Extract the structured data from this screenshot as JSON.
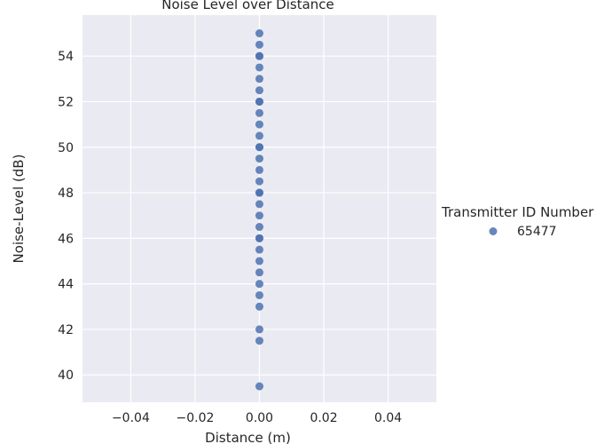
{
  "chart_data": {
    "type": "scatter",
    "title": "Noise Level over Distance",
    "xlabel": "Distance (m)",
    "ylabel": "Noise-Level (dB)",
    "xlim": [
      -0.055,
      0.055
    ],
    "ylim": [
      38.8,
      55.8
    ],
    "xticks": [
      -0.04,
      -0.02,
      0.0,
      0.02,
      0.04
    ],
    "xtick_labels": [
      "−0.04",
      "−0.02",
      "0.00",
      "0.02",
      "0.04"
    ],
    "yticks": [
      40,
      42,
      44,
      46,
      48,
      50,
      52,
      54
    ],
    "ytick_labels": [
      "40",
      "42",
      "44",
      "46",
      "48",
      "50",
      "52",
      "54"
    ],
    "grid": true,
    "legend": {
      "title": "Transmitter ID Number",
      "placement": "right"
    },
    "series": [
      {
        "name": "65477",
        "color": "#4c72b0",
        "x": [
          0,
          0,
          0,
          0,
          0,
          0,
          0,
          0,
          0,
          0,
          0,
          0,
          0,
          0,
          0,
          0,
          0,
          0,
          0,
          0,
          0,
          0,
          0,
          0,
          0,
          0,
          0,
          0,
          0,
          0,
          0,
          0,
          0
        ],
        "y": [
          39.5,
          41.5,
          42.0,
          43.0,
          43.5,
          44.0,
          44.5,
          45.0,
          45.5,
          46.0,
          46.5,
          47.0,
          47.5,
          48.0,
          48.5,
          49.0,
          49.5,
          50.0,
          50.5,
          51.0,
          51.5,
          52.0,
          52.5,
          53.0,
          53.5,
          54.0,
          54.5,
          55.0,
          48.0,
          46.0,
          50.0,
          52.0,
          54.0
        ]
      }
    ]
  }
}
